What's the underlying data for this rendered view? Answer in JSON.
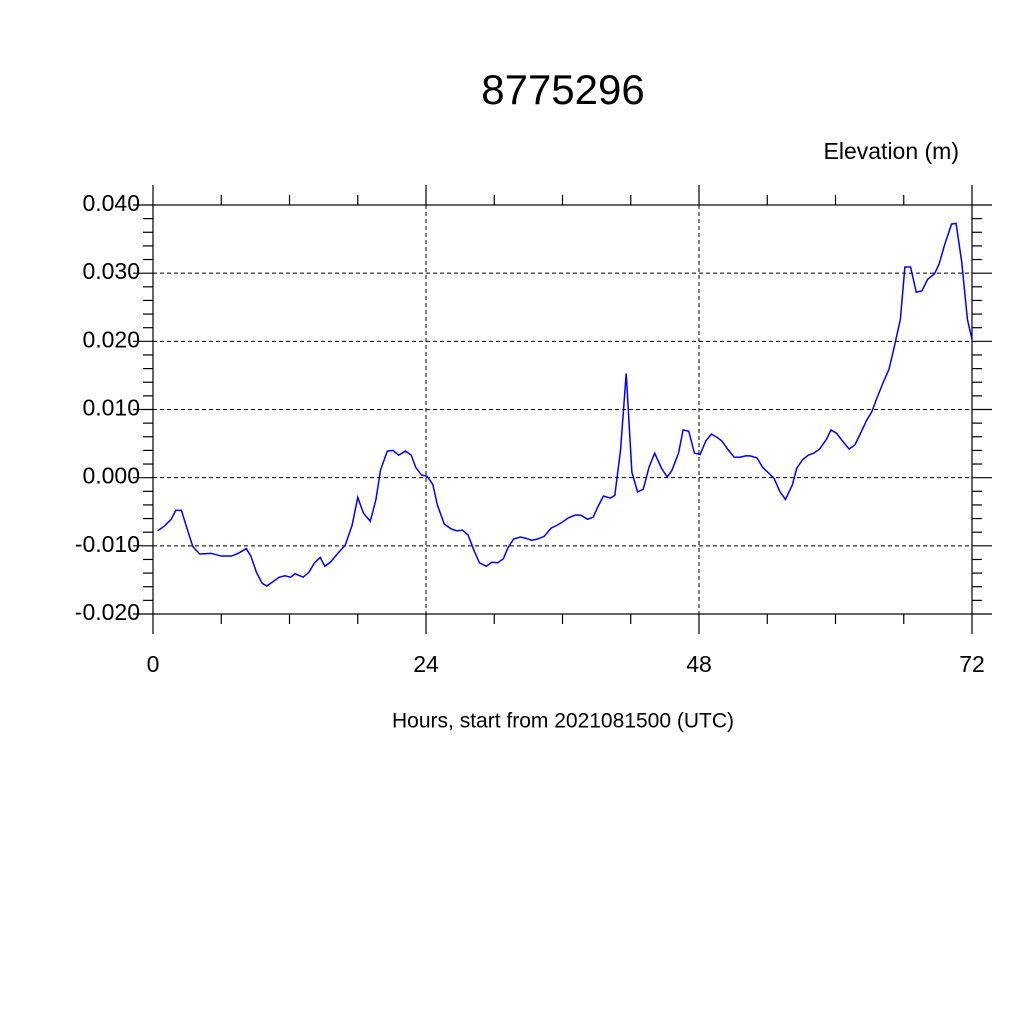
{
  "chart_data": {
    "type": "line",
    "title": "8775296",
    "ylabel": "Elevation (m)",
    "xlabel": "Hours, start from 2021081500 (UTC)",
    "x": [
      0.4,
      1.0,
      1.6,
      2.0,
      2.5,
      3.0,
      3.5,
      4.1,
      5.1,
      6.0,
      6.9,
      7.5,
      8.2,
      8.6,
      9.1,
      9.6,
      10.0,
      10.6,
      11.1,
      11.6,
      12.1,
      12.5,
      13.2,
      13.7,
      14.2,
      14.7,
      15.1,
      15.6,
      16.2,
      16.9,
      17.5,
      18.0,
      18.5,
      19.1,
      19.6,
      20.0,
      20.6,
      21.1,
      21.6,
      22.2,
      22.7,
      23.1,
      23.6,
      24.1,
      24.6,
      25.0,
      25.6,
      26.2,
      26.7,
      27.2,
      27.7,
      28.2,
      28.7,
      29.3,
      29.8,
      30.3,
      30.8,
      31.2,
      31.7,
      32.3,
      32.8,
      33.3,
      33.8,
      34.4,
      35.0,
      35.5,
      36.0,
      36.5,
      37.1,
      37.6,
      38.2,
      38.7,
      39.1,
      39.6,
      40.2,
      40.6,
      41.1,
      41.6,
      42.1,
      42.6,
      43.1,
      43.6,
      44.1,
      44.7,
      45.2,
      45.6,
      46.2,
      46.6,
      47.1,
      47.6,
      48.1,
      48.6,
      49.1,
      49.6,
      50.0,
      50.6,
      51.1,
      51.6,
      52.1,
      52.5,
      53.1,
      53.6,
      54.1,
      54.6,
      55.1,
      55.6,
      56.2,
      56.6,
      57.1,
      57.6,
      58.1,
      58.6,
      59.2,
      59.6,
      60.1,
      60.7,
      61.2,
      61.7,
      62.2,
      62.7,
      63.2,
      63.6,
      64.2,
      64.7,
      65.1,
      65.7,
      66.1,
      66.6,
      67.1,
      67.6,
      68.1,
      68.7,
      69.1,
      69.6,
      70.2,
      70.6,
      71.1,
      71.6,
      72.0
    ],
    "series": [
      {
        "color": "#0000ff",
        "values": [
          -0.0078,
          -0.0071,
          -0.0061,
          -0.0048,
          -0.0048,
          -0.0075,
          -0.0101,
          -0.0112,
          -0.0111,
          -0.0115,
          -0.0115,
          -0.0111,
          -0.0104,
          -0.0115,
          -0.0139,
          -0.0155,
          -0.0159,
          -0.0152,
          -0.0146,
          -0.0144,
          -0.0146,
          -0.0141,
          -0.0146,
          -0.0139,
          -0.0125,
          -0.0117,
          -0.013,
          -0.0124,
          -0.0112,
          -0.0099,
          -0.007,
          -0.0029,
          -0.0052,
          -0.0064,
          -0.0032,
          0.0011,
          0.0039,
          0.004,
          0.0033,
          0.0039,
          0.0033,
          0.0015,
          0.0004,
          0.0002,
          -0.001,
          -0.004,
          -0.0068,
          -0.0075,
          -0.0078,
          -0.0077,
          -0.0084,
          -0.0106,
          -0.0125,
          -0.013,
          -0.0124,
          -0.0125,
          -0.0119,
          -0.0103,
          -0.009,
          -0.0087,
          -0.0089,
          -0.0092,
          -0.009,
          -0.0086,
          -0.0074,
          -0.007,
          -0.0065,
          -0.0059,
          -0.0055,
          -0.0055,
          -0.0061,
          -0.0058,
          -0.0043,
          -0.0027,
          -0.003,
          -0.0026,
          0.004,
          0.0153,
          0.0008,
          -0.0021,
          -0.0017,
          0.0015,
          0.0036,
          0.0014,
          0.0001,
          0.001,
          0.0036,
          0.007,
          0.0068,
          0.0036,
          0.0034,
          0.0054,
          0.0064,
          0.0059,
          0.0054,
          0.004,
          0.003,
          0.003,
          0.0032,
          0.0032,
          0.0029,
          0.0015,
          0.0007,
          -0.0001,
          -0.002,
          -0.0032,
          -0.0011,
          0.0014,
          0.0026,
          0.0033,
          0.0036,
          0.0042,
          0.0056,
          0.007,
          0.0065,
          0.0052,
          0.0042,
          0.0048,
          0.0065,
          0.0083,
          0.0097,
          0.0115,
          0.014,
          0.0159,
          0.0187,
          0.0232,
          0.0309,
          0.0309,
          0.0272,
          0.0274,
          0.0291,
          0.0299,
          0.0313,
          0.0342,
          0.0372,
          0.0373,
          0.0316,
          0.0232,
          0.0203
        ]
      }
    ],
    "xlim": [
      0,
      72
    ],
    "xticks": [
      0,
      24,
      48,
      72
    ],
    "ylim": [
      -0.02,
      0.04
    ],
    "yticks": [
      {
        "value": -0.02,
        "label": "-0.020"
      },
      {
        "value": -0.01,
        "label": "-0.010"
      },
      {
        "value": 0,
        "label": "0.000"
      },
      {
        "value": 0.01,
        "label": "0.010"
      },
      {
        "value": 0.02,
        "label": "0.020"
      },
      {
        "value": 0.03,
        "label": "0.030"
      },
      {
        "value": 0.04,
        "label": "0.040"
      }
    ],
    "grid": true
  }
}
